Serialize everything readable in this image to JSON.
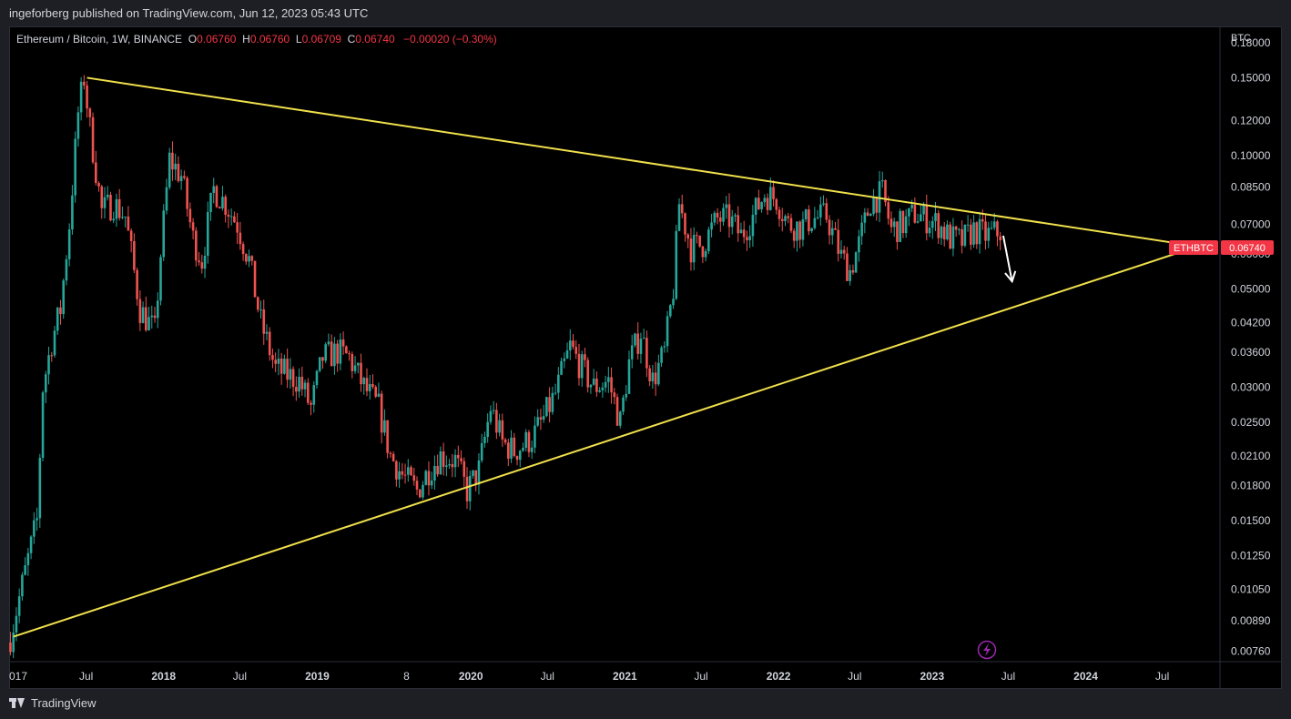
{
  "header": {
    "text": "ingeforberg published on TradingView.com, Jun 12, 2023 05:43 UTC"
  },
  "legend": {
    "symbol": "Ethereum / Bitcoin, 1W, BINANCE",
    "o_label": "O",
    "o_value": "0.06760",
    "h_label": "H",
    "h_value": "0.06760",
    "l_label": "L",
    "l_value": "0.06709",
    "c_label": "C",
    "c_value": "0.06740",
    "change": "−0.00020 (−0.30%)"
  },
  "price_tag": {
    "ticker": "ETHBTC",
    "value": "0.06740"
  },
  "footer": {
    "brand": "TradingView"
  },
  "colors": {
    "up": "#26a69a",
    "down": "#ef5350",
    "trendline": "#f0e04c",
    "arrow": "#ffffff",
    "tag": "#f23645",
    "lightning": "#9c27b0"
  },
  "icons": {
    "lightning": "lightning-icon",
    "logo": "tradingview-logo-icon"
  },
  "chart_data": {
    "type": "candlestick",
    "title": "Ethereum / Bitcoin, 1W, BINANCE",
    "scale": "log",
    "y_unit": "BTC",
    "y_ticks": [
      "0.18000",
      "0.15000",
      "0.12000",
      "0.10000",
      "0.08500",
      "0.07000",
      "0.06000",
      "0.05000",
      "0.04200",
      "0.03600",
      "0.03000",
      "0.02500",
      "0.02100",
      "0.01800",
      "0.01500",
      "0.01250",
      "0.01050",
      "0.00890",
      "0.00760"
    ],
    "x_ticks": [
      "017",
      "Jul",
      "2018",
      "Jul",
      "2019",
      "8",
      "2020",
      "Jul",
      "2021",
      "Jul",
      "2022",
      "Jul",
      "2023",
      "Jul",
      "2024",
      "Jul"
    ],
    "ylim": [
      0.0072,
      0.195
    ],
    "xlim": [
      "2017-01-01",
      "2024-11-15"
    ],
    "last_close": 0.0674,
    "price_path": [
      [
        "2017-01-02",
        0.0082
      ],
      [
        "2017-02-06",
        0.0115
      ],
      [
        "2017-03-06",
        0.015
      ],
      [
        "2017-03-20",
        0.03
      ],
      [
        "2017-04-10",
        0.038
      ],
      [
        "2017-05-01",
        0.045
      ],
      [
        "2017-05-22",
        0.07
      ],
      [
        "2017-06-12",
        0.125
      ],
      [
        "2017-06-26",
        0.15
      ],
      [
        "2017-07-10",
        0.115
      ],
      [
        "2017-08-07",
        0.075
      ],
      [
        "2017-09-04",
        0.078
      ],
      [
        "2017-10-02",
        0.073
      ],
      [
        "2017-11-06",
        0.045
      ],
      [
        "2017-12-11",
        0.04
      ],
      [
        "2017-12-25",
        0.06
      ],
      [
        "2018-01-15",
        0.098
      ],
      [
        "2018-02-12",
        0.09
      ],
      [
        "2018-03-12",
        0.065
      ],
      [
        "2018-04-02",
        0.058
      ],
      [
        "2018-04-30",
        0.084
      ],
      [
        "2018-05-28",
        0.078
      ],
      [
        "2018-06-25",
        0.07
      ],
      [
        "2018-07-23",
        0.058
      ],
      [
        "2018-08-20",
        0.042
      ],
      [
        "2018-09-24",
        0.033
      ],
      [
        "2018-10-22",
        0.032
      ],
      [
        "2018-11-19",
        0.031
      ],
      [
        "2018-12-17",
        0.027
      ],
      [
        "2019-01-14",
        0.035
      ],
      [
        "2019-02-18",
        0.036
      ],
      [
        "2019-03-18",
        0.035
      ],
      [
        "2019-04-22",
        0.03
      ],
      [
        "2019-05-27",
        0.027
      ],
      [
        "2019-06-24",
        0.021
      ],
      [
        "2019-07-22",
        0.019
      ],
      [
        "2019-08-26",
        0.0175
      ],
      [
        "2019-09-23",
        0.0195
      ],
      [
        "2019-10-21",
        0.021
      ],
      [
        "2019-11-25",
        0.0205
      ],
      [
        "2019-12-23",
        0.0175
      ],
      [
        "2020-01-20",
        0.0195
      ],
      [
        "2020-02-17",
        0.027
      ],
      [
        "2020-03-16",
        0.0225
      ],
      [
        "2020-04-13",
        0.0215
      ],
      [
        "2020-05-25",
        0.023
      ],
      [
        "2020-06-22",
        0.0255
      ],
      [
        "2020-07-20",
        0.029
      ],
      [
        "2020-08-24",
        0.037
      ],
      [
        "2020-09-21",
        0.033
      ],
      [
        "2020-10-19",
        0.03
      ],
      [
        "2020-11-23",
        0.031
      ],
      [
        "2020-12-21",
        0.025
      ],
      [
        "2021-01-11",
        0.034
      ],
      [
        "2021-02-08",
        0.04
      ],
      [
        "2021-03-08",
        0.031
      ],
      [
        "2021-04-05",
        0.036
      ],
      [
        "2021-04-26",
        0.05
      ],
      [
        "2021-05-10",
        0.078
      ],
      [
        "2021-06-07",
        0.062
      ],
      [
        "2021-07-05",
        0.063
      ],
      [
        "2021-08-09",
        0.072
      ],
      [
        "2021-09-06",
        0.072
      ],
      [
        "2021-10-04",
        0.066
      ],
      [
        "2021-11-01",
        0.073
      ],
      [
        "2021-11-29",
        0.082
      ],
      [
        "2021-12-27",
        0.08
      ],
      [
        "2022-01-24",
        0.07
      ],
      [
        "2022-02-21",
        0.069
      ],
      [
        "2022-03-21",
        0.072
      ],
      [
        "2022-04-25",
        0.073
      ],
      [
        "2022-05-30",
        0.059
      ],
      [
        "2022-06-20",
        0.055
      ],
      [
        "2022-07-11",
        0.063
      ],
      [
        "2022-08-08",
        0.079
      ],
      [
        "2022-09-05",
        0.082
      ],
      [
        "2022-09-26",
        0.068
      ],
      [
        "2022-10-24",
        0.07
      ],
      [
        "2022-11-21",
        0.074
      ],
      [
        "2022-12-19",
        0.072
      ],
      [
        "2023-01-16",
        0.07
      ],
      [
        "2023-02-13",
        0.065
      ],
      [
        "2023-03-13",
        0.064
      ],
      [
        "2023-04-10",
        0.068
      ],
      [
        "2023-05-08",
        0.066
      ],
      [
        "2023-06-12",
        0.0674
      ]
    ],
    "trendlines": [
      {
        "from": [
          "2017-07-03",
          0.15
        ],
        "to": [
          "2024-09-23",
          0.0624
        ]
      },
      {
        "from": [
          "2017-01-09",
          0.0082
        ],
        "to": [
          "2024-09-23",
          0.0624
        ]
      }
    ],
    "arrow": {
      "from": [
        "2023-06-19",
        0.066
      ],
      "to": [
        "2023-07-10",
        0.052
      ]
    }
  }
}
